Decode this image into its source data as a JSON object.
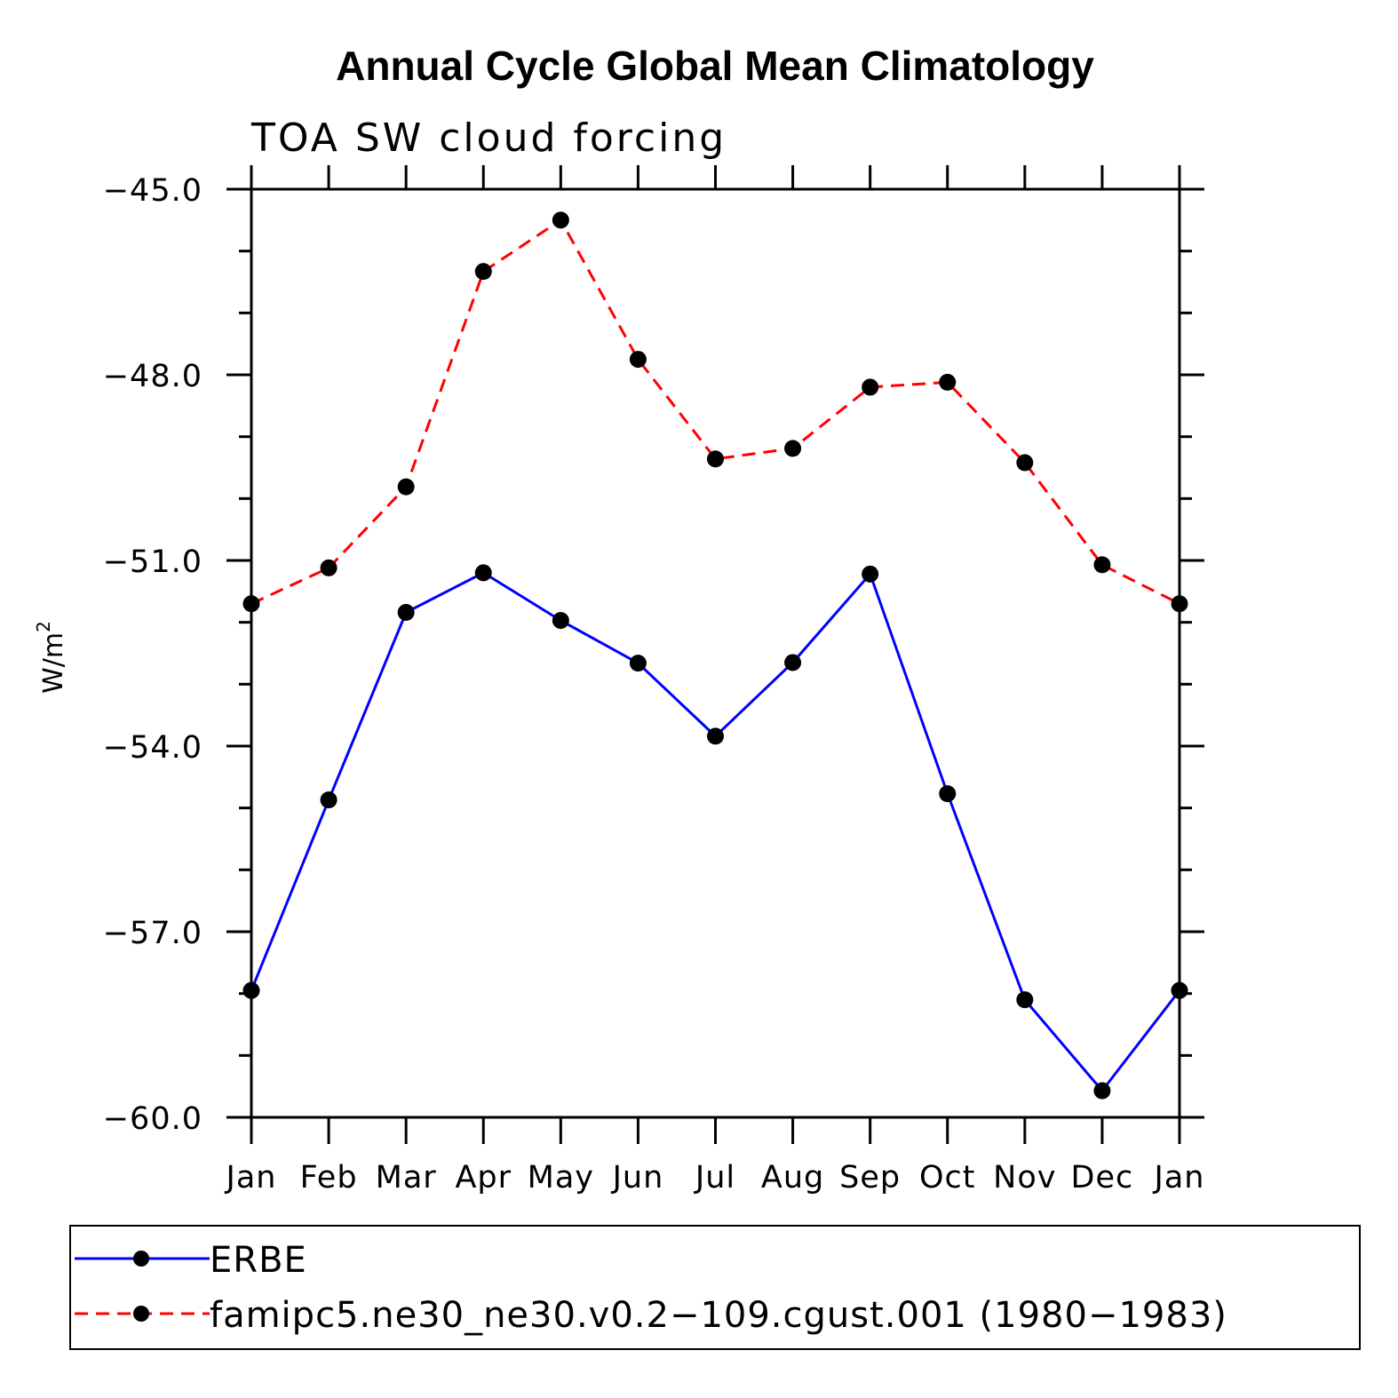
{
  "chart_data": {
    "type": "line",
    "title": "Annual Cycle Global Mean Climatology",
    "subtitle": "TOA SW cloud forcing",
    "xlabel": "",
    "ylabel": "W/m",
    "ylabel_superscript": "2",
    "categories": [
      "Jan",
      "Feb",
      "Mar",
      "Apr",
      "May",
      "Jun",
      "Jul",
      "Aug",
      "Sep",
      "Oct",
      "Nov",
      "Dec",
      "Jan"
    ],
    "ylim": [
      -60.0,
      -45.0
    ],
    "yticks": [
      -45.0,
      -48.0,
      -51.0,
      -54.0,
      -57.0,
      -60.0
    ],
    "ytick_labels": [
      "−45.0",
      "−48.0",
      "−51.0",
      "−54.0",
      "−57.0",
      "−60.0"
    ],
    "series": [
      {
        "name": "ERBE",
        "color": "#0000ff",
        "dash": "solid",
        "values": [
          -57.95,
          -54.87,
          -51.84,
          -51.2,
          -51.97,
          -52.66,
          -53.84,
          -52.65,
          -51.22,
          -54.77,
          -58.1,
          -59.57,
          -57.95
        ]
      },
      {
        "name": "famipc5.ne30_ne30.v0.2−109.cgust.001 (1980−1983)",
        "color": "#ff0000",
        "dash": "dashed",
        "values": [
          -51.7,
          -51.12,
          -49.81,
          -46.33,
          -45.5,
          -47.75,
          -49.36,
          -49.19,
          -48.2,
          -48.12,
          -49.42,
          -51.07,
          -51.7
        ]
      }
    ],
    "legend_position": "bottom"
  }
}
